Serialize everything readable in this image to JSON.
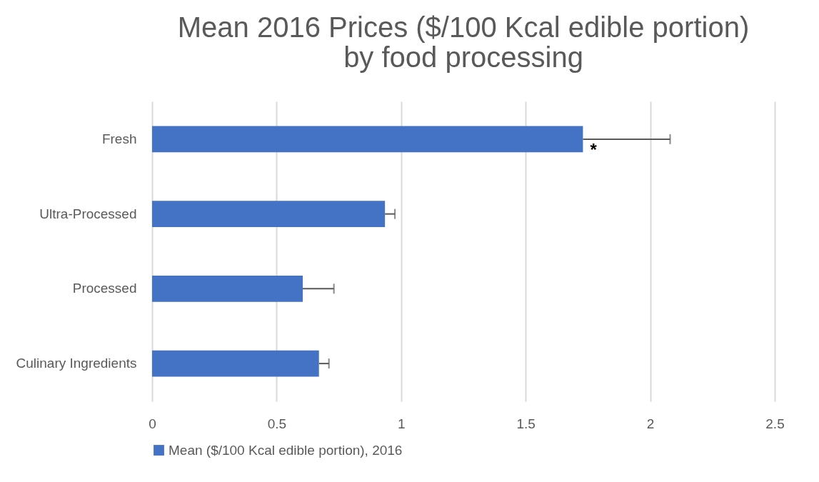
{
  "chart_data": {
    "type": "bar",
    "orientation": "horizontal",
    "title": "Mean 2016 Prices ($/100 Kcal edible portion)\nby food processing",
    "categories": [
      "Fresh",
      "Ultra-Processed",
      "Processed",
      "Culinary Ingredients"
    ],
    "series": [
      {
        "name": "Mean ($/100 Kcal edible portion), 2016",
        "color": "#4472c4",
        "values": [
          1.73,
          0.935,
          0.605,
          0.67
        ],
        "errors": [
          [
            1.73,
            2.08
          ],
          [
            0.935,
            0.975
          ],
          [
            0.605,
            0.73
          ],
          [
            0.67,
            0.71
          ]
        ]
      }
    ],
    "xlim": [
      0,
      2.5
    ],
    "xticks": [
      0,
      0.5,
      1,
      1.5,
      2,
      2.5
    ],
    "grid": "x",
    "legend": "bottom",
    "annotations": [
      {
        "text": "*",
        "x": 1.73,
        "y": "Fresh"
      }
    ]
  }
}
